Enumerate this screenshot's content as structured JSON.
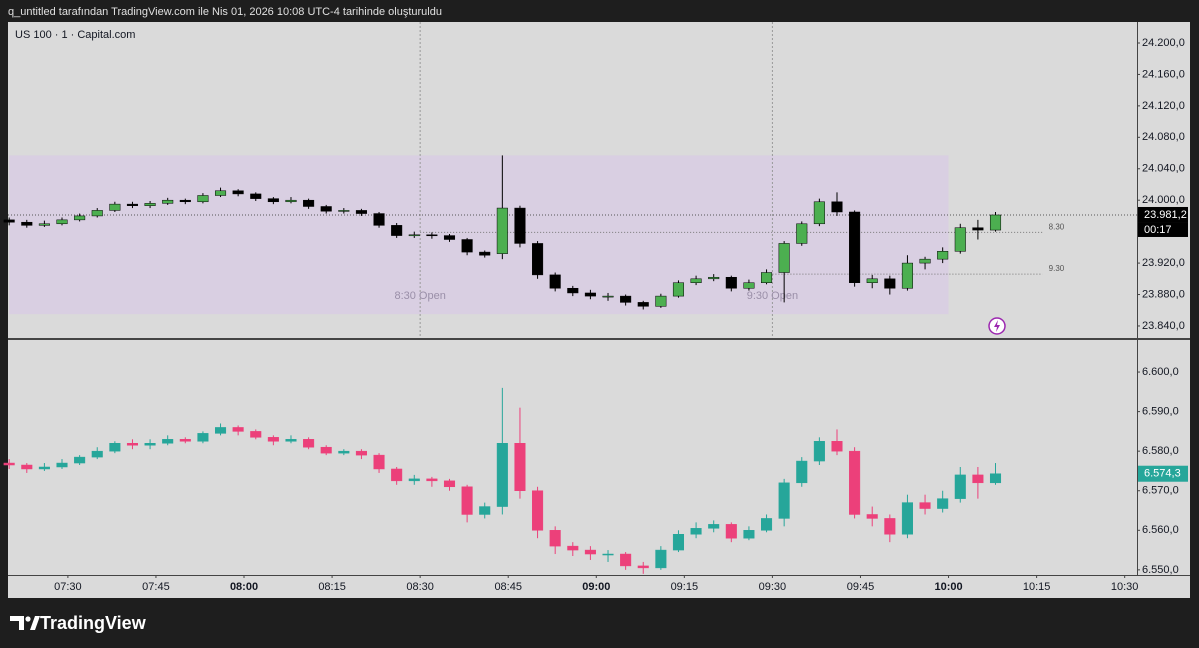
{
  "header": {
    "text": "q_untitled tarafından TradingView.com ile Nis 01, 2026 10:08 UTC-4 tarihinde oluşturuldu"
  },
  "footer": {
    "brand": "TradingView"
  },
  "chart_data": [
    {
      "type": "candlestick",
      "legend_title": "US 100 · 1 · Capital.com",
      "up_color": "#4caf50",
      "down_color": "#000000",
      "wick_color": "#000000",
      "xlim": [
        439.8,
        632.1
      ],
      "ylim": [
        23824.7,
        24226.7
      ],
      "yticks": [
        {
          "value": 24200,
          "label": "24.200,0"
        },
        {
          "value": 24160,
          "label": "24.160,0"
        },
        {
          "value": 24120,
          "label": "24.120,0"
        },
        {
          "value": 24080,
          "label": "24.080,0"
        },
        {
          "value": 24040,
          "label": "24.040,0"
        },
        {
          "value": 24000,
          "label": "24.000,0"
        },
        {
          "value": 23960,
          "label": "23.960,0"
        },
        {
          "value": 23920,
          "label": "23.920,0"
        },
        {
          "value": 23880,
          "label": "23.880,0"
        },
        {
          "value": 23840,
          "label": "23.840,0"
        }
      ],
      "x": [
        440,
        443,
        446,
        449,
        452,
        455,
        458,
        461,
        464,
        467,
        470,
        473,
        476,
        479,
        482,
        485,
        488,
        491,
        494,
        497,
        500,
        503,
        506,
        509,
        512,
        515,
        518,
        521,
        524,
        527,
        530,
        533,
        536,
        539,
        542,
        545,
        548,
        551,
        554,
        557,
        560,
        563,
        566,
        569,
        572,
        575,
        578,
        581,
        584,
        587,
        590,
        593,
        596,
        599,
        602,
        605,
        608
      ],
      "candles": [
        [
          23975,
          23978,
          23968,
          23972
        ],
        [
          23972,
          23975,
          23965,
          23968
        ],
        [
          23968,
          23974,
          23966,
          23970
        ],
        [
          23970,
          23978,
          23968,
          23975
        ],
        [
          23975,
          23983,
          23973,
          23980
        ],
        [
          23980,
          23990,
          23978,
          23987
        ],
        [
          23987,
          23998,
          23985,
          23995
        ],
        [
          23995,
          23998,
          23990,
          23993
        ],
        [
          23993,
          23999,
          23990,
          23996
        ],
        [
          23996,
          24003,
          23994,
          24000
        ],
        [
          24000,
          24002,
          23995,
          23998
        ],
        [
          23998,
          24009,
          23996,
          24006
        ],
        [
          24006,
          24016,
          24004,
          24012
        ],
        [
          24012,
          24014,
          24005,
          24008
        ],
        [
          24008,
          24010,
          23999,
          24002
        ],
        [
          24002,
          24004,
          23995,
          23998
        ],
        [
          23998,
          24004,
          23996,
          24000
        ],
        [
          24000,
          24002,
          23989,
          23992
        ],
        [
          23992,
          23994,
          23983,
          23986
        ],
        [
          23986,
          23990,
          23983,
          23987
        ],
        [
          23987,
          23989,
          23980,
          23983
        ],
        [
          23983,
          23985,
          23965,
          23968
        ],
        [
          23968,
          23971,
          23952,
          23955
        ],
        [
          23955,
          23960,
          23952,
          23956
        ],
        [
          23956,
          23959,
          23951,
          23955
        ],
        [
          23955,
          23957,
          23947,
          23950
        ],
        [
          23950,
          23952,
          23930,
          23934
        ],
        [
          23934,
          23936,
          23927,
          23930
        ],
        [
          23932,
          24057,
          23925,
          23990
        ],
        [
          23990,
          23993,
          23940,
          23945
        ],
        [
          23945,
          23948,
          23900,
          23905
        ],
        [
          23905,
          23908,
          23884,
          23888
        ],
        [
          23888,
          23891,
          23878,
          23882
        ],
        [
          23882,
          23886,
          23874,
          23878
        ],
        [
          23878,
          23882,
          23872,
          23878
        ],
        [
          23878,
          23880,
          23866,
          23870
        ],
        [
          23870,
          23872,
          23861,
          23865
        ],
        [
          23865,
          23881,
          23863,
          23878
        ],
        [
          23878,
          23898,
          23876,
          23895
        ],
        [
          23895,
          23904,
          23892,
          23900
        ],
        [
          23900,
          23906,
          23897,
          23902
        ],
        [
          23902,
          23904,
          23884,
          23888
        ],
        [
          23888,
          23899,
          23885,
          23895
        ],
        [
          23895,
          23912,
          23893,
          23908
        ],
        [
          23908,
          23948,
          23870,
          23945
        ],
        [
          23945,
          23973,
          23942,
          23970
        ],
        [
          23970,
          24002,
          23967,
          23998
        ],
        [
          23998,
          24010,
          23980,
          23985
        ],
        [
          23985,
          23987,
          23890,
          23895
        ],
        [
          23895,
          23905,
          23888,
          23900
        ],
        [
          23900,
          23904,
          23880,
          23888
        ],
        [
          23888,
          23930,
          23885,
          23920
        ],
        [
          23920,
          23928,
          23912,
          23925
        ],
        [
          23925,
          23940,
          23920,
          23935
        ],
        [
          23935,
          23970,
          23932,
          23965
        ],
        [
          23965,
          23975,
          23950,
          23962
        ],
        [
          23962,
          23985,
          23960,
          23981.2
        ]
      ],
      "session_box": {
        "x": [
          440,
          600
        ],
        "y": [
          23855,
          24057
        ]
      },
      "session_lines": [
        {
          "x": 510,
          "label": "8:30 Open"
        },
        {
          "x": 570,
          "label": "9:30 Open"
        }
      ],
      "levels": [
        {
          "value": 23959,
          "label": "8.30",
          "x": [
            510,
            616
          ]
        },
        {
          "value": 23906,
          "label": "9.30",
          "x": [
            570,
            616
          ]
        }
      ],
      "last_price": {
        "value": 23981.2,
        "label": "23.981,2"
      },
      "last_price_line": true,
      "countdown": "00:17",
      "last_price_color": "#000000"
    },
    {
      "type": "candlestick",
      "up_color": "#26a69a",
      "down_color": "#ec407a",
      "xlim": [
        439.8,
        632.1
      ],
      "ylim": [
        6548.7,
        6608.1
      ],
      "yticks": [
        {
          "value": 6600,
          "label": "6.600,0"
        },
        {
          "value": 6590,
          "label": "6.590,0"
        },
        {
          "value": 6580,
          "label": "6.580,0"
        },
        {
          "value": 6570,
          "label": "6.570,0"
        },
        {
          "value": 6560,
          "label": "6.560,0"
        },
        {
          "value": 6550,
          "label": "6.550,0"
        }
      ],
      "xticks": [
        {
          "value": 450,
          "label": "07:30"
        },
        {
          "value": 465,
          "label": "07:45"
        },
        {
          "value": 480,
          "label": "08:00"
        },
        {
          "value": 495,
          "label": "08:15"
        },
        {
          "value": 510,
          "label": "08:30"
        },
        {
          "value": 525,
          "label": "08:45"
        },
        {
          "value": 540,
          "label": "09:00"
        },
        {
          "value": 555,
          "label": "09:15"
        },
        {
          "value": 570,
          "label": "09:30"
        },
        {
          "value": 585,
          "label": "09:45"
        },
        {
          "value": 600,
          "label": "10:00"
        },
        {
          "value": 615,
          "label": "10:15"
        },
        {
          "value": 630,
          "label": "10:30"
        }
      ],
      "x": [
        440,
        443,
        446,
        449,
        452,
        455,
        458,
        461,
        464,
        467,
        470,
        473,
        476,
        479,
        482,
        485,
        488,
        491,
        494,
        497,
        500,
        503,
        506,
        509,
        512,
        515,
        518,
        521,
        524,
        527,
        530,
        533,
        536,
        539,
        542,
        545,
        548,
        551,
        554,
        557,
        560,
        563,
        566,
        569,
        572,
        575,
        578,
        581,
        584,
        587,
        590,
        593,
        596,
        599,
        602,
        605,
        608
      ],
      "candles": [
        [
          6577,
          6578,
          6575.5,
          6576.5
        ],
        [
          6576.5,
          6577,
          6574.5,
          6575.5
        ],
        [
          6575.5,
          6577,
          6575,
          6576
        ],
        [
          6576,
          6578,
          6575.5,
          6577
        ],
        [
          6577,
          6579,
          6576.5,
          6578.5
        ],
        [
          6578.5,
          6581,
          6578,
          6580
        ],
        [
          6580,
          6582.5,
          6579.5,
          6582
        ],
        [
          6582,
          6583,
          6580.5,
          6581.5
        ],
        [
          6581.5,
          6583,
          6580.5,
          6582
        ],
        [
          6582,
          6584,
          6581.5,
          6583
        ],
        [
          6583,
          6583.5,
          6582,
          6582.5
        ],
        [
          6582.5,
          6585,
          6582,
          6584.5
        ],
        [
          6584.5,
          6587,
          6584,
          6586
        ],
        [
          6586,
          6586.5,
          6584,
          6585
        ],
        [
          6585,
          6585.5,
          6583,
          6583.5
        ],
        [
          6583.5,
          6584,
          6581.5,
          6582.5
        ],
        [
          6582.5,
          6584,
          6582,
          6583
        ],
        [
          6583,
          6583.5,
          6580.5,
          6581
        ],
        [
          6581,
          6581.5,
          6579,
          6579.5
        ],
        [
          6579.5,
          6580.5,
          6579,
          6580
        ],
        [
          6580,
          6580.5,
          6578,
          6579
        ],
        [
          6579,
          6579.5,
          6574.5,
          6575.5
        ],
        [
          6575.5,
          6576,
          6571.5,
          6572.5
        ],
        [
          6572.5,
          6574,
          6571.5,
          6573
        ],
        [
          6573,
          6573.5,
          6571,
          6572.5
        ],
        [
          6572.5,
          6573,
          6570,
          6571
        ],
        [
          6571,
          6571.5,
          6562,
          6564
        ],
        [
          6564,
          6567,
          6563,
          6566
        ],
        [
          6566,
          6596,
          6564,
          6582
        ],
        [
          6582,
          6591,
          6568,
          6570
        ],
        [
          6570,
          6571,
          6558,
          6560
        ],
        [
          6560,
          6561,
          6554,
          6556
        ],
        [
          6556,
          6557,
          6553.5,
          6555
        ],
        [
          6555,
          6556,
          6552.5,
          6554
        ],
        [
          6554,
          6555,
          6552,
          6554
        ],
        [
          6554,
          6554.5,
          6550,
          6551
        ],
        [
          6551,
          6552,
          6549,
          6550.5
        ],
        [
          6550.5,
          6556,
          6550,
          6555
        ],
        [
          6555,
          6560,
          6554.5,
          6559
        ],
        [
          6559,
          6562,
          6558,
          6560.5
        ],
        [
          6560.5,
          6562.5,
          6559.5,
          6561.5
        ],
        [
          6561.5,
          6562,
          6557,
          6558
        ],
        [
          6558,
          6561,
          6557.5,
          6560
        ],
        [
          6560,
          6564,
          6559.5,
          6563
        ],
        [
          6563,
          6573,
          6561,
          6572
        ],
        [
          6572,
          6578.5,
          6571,
          6577.5
        ],
        [
          6577.5,
          6583.5,
          6576.5,
          6582.5
        ],
        [
          6582.5,
          6585.5,
          6579,
          6580
        ],
        [
          6580,
          6581,
          6563,
          6564
        ],
        [
          6564,
          6566,
          6561,
          6563
        ],
        [
          6563,
          6564,
          6557,
          6559
        ],
        [
          6559,
          6569,
          6558,
          6567
        ],
        [
          6567,
          6569,
          6564,
          6565.5
        ],
        [
          6565.5,
          6570,
          6564.5,
          6568
        ],
        [
          6568,
          6576,
          6567,
          6574
        ],
        [
          6574,
          6576,
          6568,
          6572
        ],
        [
          6572,
          6577,
          6571.5,
          6574.3
        ]
      ],
      "last_price": {
        "value": 6574.3,
        "label": "6.574,3"
      },
      "last_price_color": "#26a69a"
    }
  ]
}
